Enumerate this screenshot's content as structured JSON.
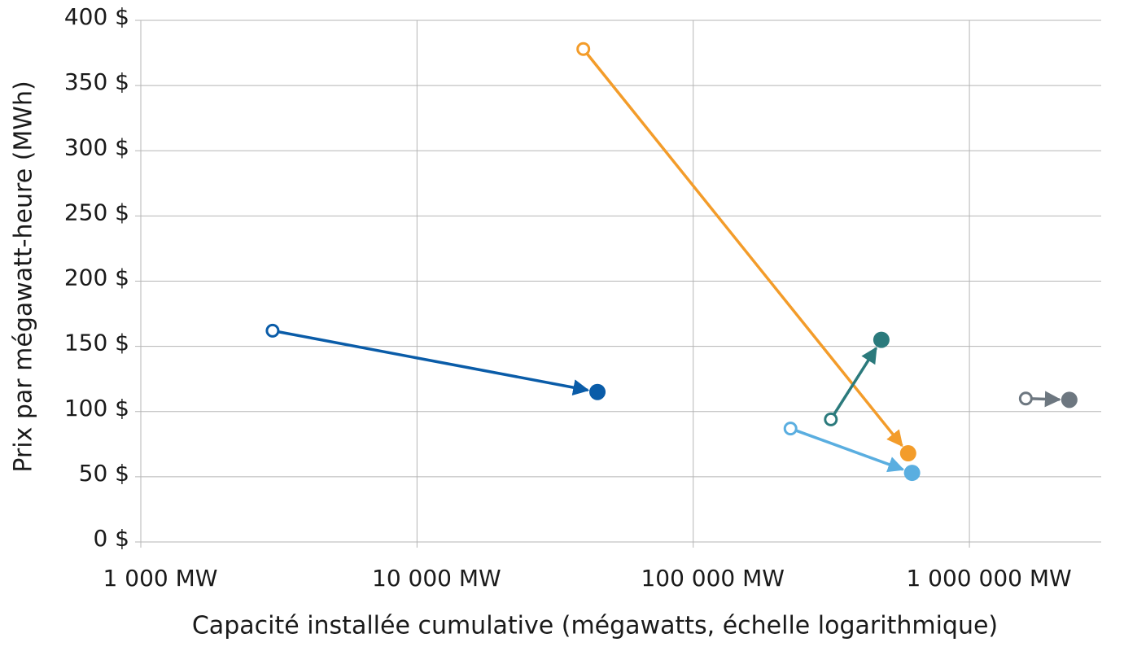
{
  "chart_data": {
    "type": "scatter",
    "x_label": "Capacité installée cumulative (mégawatts, échelle logarithmique)",
    "y_label": "Prix par mégawatt-heure (MWh)",
    "xscale": "log",
    "grid": true,
    "xlim": [
      1000,
      3000000
    ],
    "xticks": [
      {
        "value": 1000,
        "label": "1 000  MW"
      },
      {
        "value": 10000,
        "label": "10 000  MW"
      },
      {
        "value": 100000,
        "label": "100 000  MW"
      },
      {
        "value": 1000000,
        "label": "1 000 000  MW"
      }
    ],
    "ylim": [
      0,
      400
    ],
    "yticks": [
      {
        "value": 0,
        "label": "0 $"
      },
      {
        "value": 50,
        "label": "50 $"
      },
      {
        "value": 100,
        "label": "100 $"
      },
      {
        "value": 150,
        "label": "150 $"
      },
      {
        "value": 200,
        "label": "200 $"
      },
      {
        "value": 250,
        "label": "250 $"
      },
      {
        "value": 300,
        "label": "300 $"
      },
      {
        "value": 350,
        "label": "350 $"
      },
      {
        "value": 400,
        "label": "400 $"
      }
    ],
    "series": [
      {
        "color": "#0a5ca8",
        "x": [
          3000,
          45000
        ],
        "values": [
          162,
          115
        ]
      },
      {
        "color": "#f39c2a",
        "x": [
          40000,
          600000
        ],
        "values": [
          378,
          68
        ]
      },
      {
        "color": "#2b7a7c",
        "x": [
          315000,
          480000
        ],
        "values": [
          94,
          155
        ]
      },
      {
        "color": "#5aaee0",
        "x": [
          225000,
          620000
        ],
        "values": [
          87,
          53
        ]
      },
      {
        "color": "#6d7780",
        "x": [
          1600000,
          2300000
        ],
        "values": [
          110,
          109
        ]
      }
    ]
  }
}
